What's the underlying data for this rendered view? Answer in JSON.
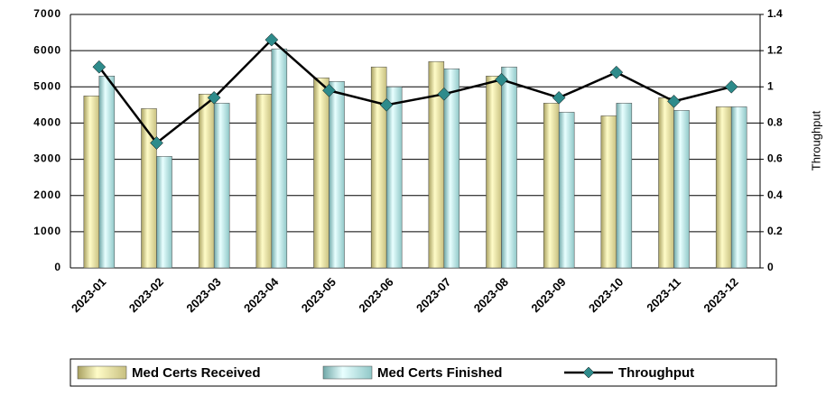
{
  "chart_data": {
    "type": "bar_line",
    "categories": [
      "2023-01",
      "2023-02",
      "2023-03",
      "2023-04",
      "2023-05",
      "2023-06",
      "2023-07",
      "2023-08",
      "2023-09",
      "2023-10",
      "2023-11",
      "2023-12"
    ],
    "series": [
      {
        "name": "Med Certs Received",
        "type": "bar",
        "color": "#f0eea0",
        "values": [
          4750,
          4400,
          4800,
          4800,
          5250,
          5550,
          5700,
          5300,
          4550,
          4200,
          4700,
          4450
        ]
      },
      {
        "name": "Med Certs Finished",
        "type": "bar",
        "color": "#c4f0f0",
        "values": [
          5300,
          3080,
          4550,
          6050,
          5150,
          5000,
          5500,
          5550,
          4300,
          4550,
          4350,
          4450
        ]
      },
      {
        "name": "Throughput",
        "type": "line",
        "axis": "y2",
        "color": "#2e8b8b",
        "values": [
          1.11,
          0.69,
          0.94,
          1.26,
          0.98,
          0.9,
          0.96,
          1.04,
          0.94,
          1.08,
          0.92,
          1.0
        ]
      }
    ],
    "y2label": "Throughput",
    "ylim": [
      0,
      7000
    ],
    "yticks": [
      0,
      1000,
      2000,
      3000,
      4000,
      5000,
      6000,
      7000
    ],
    "y2lim": [
      0,
      1.4
    ],
    "y2ticks": [
      0,
      0.2,
      0.4,
      0.6,
      0.8,
      1,
      1.2,
      1.4
    ],
    "grid": true,
    "legend": "bottom"
  }
}
